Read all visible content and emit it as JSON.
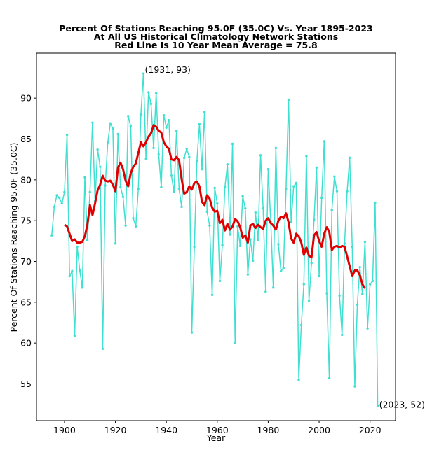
{
  "chart_data": {
    "type": "line",
    "title": [
      "Percent Of Stations Reaching 95.0F (35.0C) Vs. Year 1895-2023",
      "At All US Historical Climatology Network Stations",
      "Red Line Is 10 Year Mean  Average = 75.8"
    ],
    "xlabel": "Year",
    "ylabel": "Percent Of Stations Reaching 95.0F (35.0C)",
    "xlim": [
      1889,
      2030
    ],
    "ylim": [
      50.5,
      95.5
    ],
    "xticks": [
      1900,
      1920,
      1940,
      1960,
      1980,
      2000,
      2020
    ],
    "yticks": [
      55,
      60,
      65,
      70,
      75,
      80,
      85,
      90
    ],
    "grid": false,
    "colors": {
      "series": "#40e0d0",
      "mean": "#e00000"
    },
    "series": [
      {
        "x": [
          1895,
          1896,
          1897,
          1898,
          1899,
          1900,
          1901,
          1902,
          1903,
          1904,
          1905,
          1906,
          1907,
          1908,
          1909,
          1910,
          1911,
          1912,
          1913,
          1914,
          1915,
          1916,
          1917,
          1918,
          1919,
          1920,
          1921,
          1922,
          1923,
          1924,
          1925,
          1926,
          1927,
          1928,
          1929,
          1930,
          1931,
          1932,
          1933,
          1934,
          1935,
          1936,
          1937,
          1938,
          1939,
          1940,
          1941,
          1942,
          1943,
          1944,
          1945,
          1946,
          1947,
          1948,
          1949,
          1950,
          1951,
          1952,
          1953,
          1954,
          1955,
          1956,
          1957,
          1958,
          1959,
          1960,
          1961,
          1962,
          1963,
          1964,
          1965,
          1966,
          1967,
          1968,
          1969,
          1970,
          1971,
          1972,
          1973,
          1974,
          1975,
          1976,
          1977,
          1978,
          1979,
          1980,
          1981,
          1982,
          1983,
          1984,
          1985,
          1986,
          1987,
          1988,
          1989,
          1990,
          1991,
          1992,
          1993,
          1994,
          1995,
          1996,
          1997,
          1998,
          1999,
          2000,
          2001,
          2002,
          2003,
          2004,
          2005,
          2006,
          2007,
          2008,
          2009,
          2010,
          2011,
          2012,
          2013,
          2014,
          2015,
          2016,
          2017,
          2018,
          2019,
          2020,
          2021,
          2022,
          2023
        ],
        "values": [
          73.2,
          76.7,
          78.1,
          77.8,
          77.1,
          78.5,
          85.5,
          68.2,
          68.8,
          60.9,
          71.8,
          68.9,
          66.8,
          80.3,
          72.6,
          78.5,
          87.0,
          77.4,
          83.7,
          81.6,
          59.3,
          79.3,
          84.6,
          86.9,
          86.3,
          72.2,
          85.6,
          79.1,
          77.9,
          74.4,
          87.8,
          86.6,
          75.3,
          74.3,
          78.9,
          88.0,
          93.0,
          82.6,
          90.7,
          89.3,
          83.9,
          90.6,
          83.1,
          79.1,
          87.9,
          86.4,
          87.3,
          80.5,
          78.5,
          86.0,
          78.9,
          76.7,
          82.7,
          83.8,
          82.8,
          61.3,
          71.8,
          82.3,
          86.8,
          81.3,
          88.3,
          76.1,
          74.4,
          65.9,
          79.0,
          77.1,
          67.6,
          72.0,
          79.1,
          81.9,
          73.3,
          84.4,
          60.0,
          74.3,
          71.9,
          78.0,
          76.5,
          68.4,
          72.7,
          70.1,
          76.0,
          72.6,
          83.0,
          76.6,
          66.3,
          81.3,
          74.9,
          66.8,
          83.9,
          72.1,
          68.8,
          69.2,
          78.9,
          89.8,
          74.8,
          79.2,
          79.6,
          55.5,
          62.2,
          67.2,
          82.9,
          65.2,
          69.8,
          75.1,
          81.5,
          68.2,
          77.8,
          84.7,
          66.1,
          55.7,
          76.3,
          80.4,
          78.6,
          65.8,
          61.0,
          72.2,
          78.6,
          82.7,
          71.8,
          54.7,
          64.7,
          69.3,
          66.0,
          72.4,
          61.8,
          67.2,
          67.6,
          77.2,
          52.3
        ]
      },
      {
        "x": [
          1900,
          1901,
          1902,
          1903,
          1904,
          1905,
          1906,
          1907,
          1908,
          1909,
          1910,
          1911,
          1912,
          1913,
          1914,
          1915,
          1916,
          1917,
          1918,
          1919,
          1920,
          1921,
          1922,
          1923,
          1924,
          1925,
          1926,
          1927,
          1928,
          1929,
          1930,
          1931,
          1932,
          1933,
          1934,
          1935,
          1936,
          1937,
          1938,
          1939,
          1940,
          1941,
          1942,
          1943,
          1944,
          1945,
          1946,
          1947,
          1948,
          1949,
          1950,
          1951,
          1952,
          1953,
          1954,
          1955,
          1956,
          1957,
          1958,
          1959,
          1960,
          1961,
          1962,
          1963,
          1964,
          1965,
          1966,
          1967,
          1968,
          1969,
          1970,
          1971,
          1972,
          1973,
          1974,
          1975,
          1976,
          1977,
          1978,
          1979,
          1980,
          1981,
          1982,
          1983,
          1984,
          1985,
          1986,
          1987,
          1988,
          1989,
          1990,
          1991,
          1992,
          1993,
          1994,
          1995,
          1996,
          1997,
          1998,
          1999,
          2000,
          2001,
          2002,
          2003,
          2004,
          2005,
          2006,
          2007,
          2008,
          2009,
          2010,
          2011,
          2012,
          2013,
          2014,
          2015,
          2016,
          2017,
          2018
        ],
        "values": [
          74.5,
          74.3,
          73.4,
          72.5,
          72.7,
          72.3,
          72.3,
          72.4,
          73.1,
          74.5,
          76.9,
          75.7,
          77.1,
          78.7,
          79.4,
          80.5,
          79.9,
          79.8,
          79.9,
          79.4,
          78.6,
          81.5,
          82.1,
          81.3,
          79.9,
          79.2,
          80.8,
          81.6,
          82.0,
          83.3,
          84.6,
          84.1,
          84.6,
          85.3,
          85.7,
          86.7,
          86.5,
          86.0,
          85.8,
          84.6,
          84.1,
          83.8,
          82.5,
          82.4,
          82.8,
          82.4,
          80.1,
          78.3,
          78.5,
          79.2,
          78.8,
          79.6,
          79.8,
          79.2,
          77.3,
          76.9,
          78.1,
          77.7,
          76.6,
          76.1,
          76.2,
          74.7,
          75.1,
          73.8,
          74.6,
          73.9,
          74.3,
          75.2,
          74.9,
          74.2,
          72.9,
          73.2,
          72.3,
          74.4,
          74.6,
          74.1,
          74.5,
          74.2,
          74.0,
          75.0,
          75.3,
          74.7,
          74.4,
          73.9,
          75.0,
          75.5,
          75.3,
          75.9,
          74.8,
          72.8,
          72.3,
          73.4,
          73.1,
          72.3,
          70.8,
          71.7,
          70.7,
          70.5,
          73.2,
          73.6,
          72.5,
          71.8,
          73.4,
          74.2,
          73.6,
          71.4,
          71.8,
          71.9,
          71.7,
          71.9,
          71.8,
          70.6,
          69.4,
          68.2,
          68.9,
          68.9,
          68.3,
          67.2,
          66.7
        ]
      }
    ],
    "annotations": [
      {
        "text": "(1931, 93)",
        "x": 1931,
        "y": 93
      },
      {
        "text": "(2023, 52)",
        "x": 2023,
        "y": 52
      }
    ]
  }
}
